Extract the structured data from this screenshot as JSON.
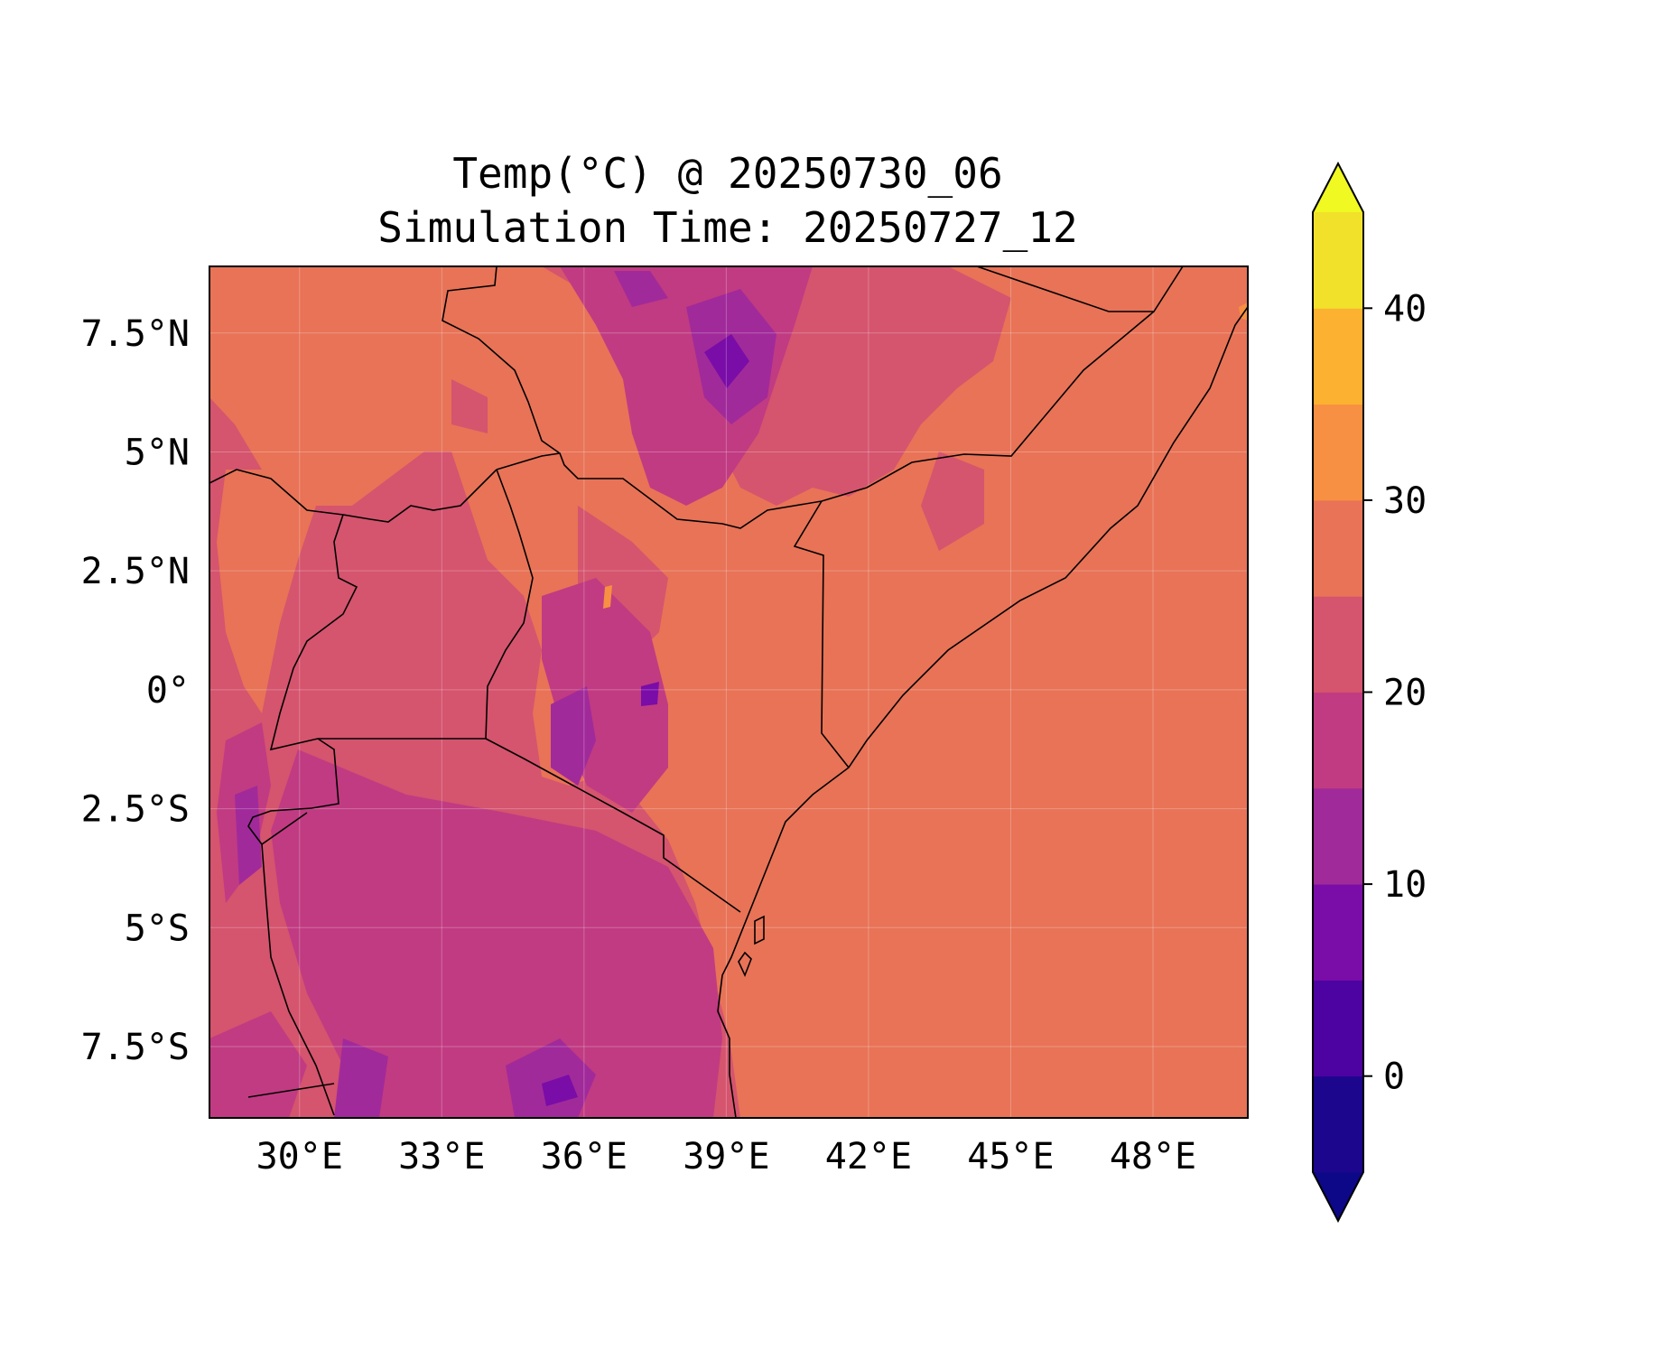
{
  "figure": {
    "title_line1": "Temp(°C) @ 20250730_06",
    "title_line2": "Simulation Time: 20250727_12"
  },
  "map": {
    "projection": "PlateCarree",
    "lon_range": [
      28.1,
      50.0
    ],
    "lat_range": [
      -9.0,
      8.9
    ],
    "gridlines": true,
    "background_color": "#e87357",
    "x_ticks": [
      {
        "value": 30,
        "label": "30°E"
      },
      {
        "value": 33,
        "label": "33°E"
      },
      {
        "value": 36,
        "label": "36°E"
      },
      {
        "value": 39,
        "label": "39°E"
      },
      {
        "value": 42,
        "label": "42°E"
      },
      {
        "value": 45,
        "label": "45°E"
      },
      {
        "value": 48,
        "label": "48°E"
      }
    ],
    "y_ticks": [
      {
        "value": 7.5,
        "label": "7.5°N"
      },
      {
        "value": 5,
        "label": "5°N"
      },
      {
        "value": 2.5,
        "label": "2.5°N"
      },
      {
        "value": 0,
        "label": "0°"
      },
      {
        "value": -2.5,
        "label": "2.5°S"
      },
      {
        "value": -5,
        "label": "5°S"
      },
      {
        "value": -7.5,
        "label": "7.5°S"
      }
    ]
  },
  "chart_data": {
    "type": "heatmap",
    "variable": "Temp(°C)",
    "colormap": "plasma",
    "levels": [
      -5,
      0,
      5,
      10,
      15,
      20,
      25,
      30,
      35,
      40,
      45
    ],
    "extend": "both",
    "level_colors": [
      "#1b068d",
      "#4d02a2",
      "#7a0ca8",
      "#a12a9a",
      "#c13b82",
      "#d5546e",
      "#e87357",
      "#f79042",
      "#fcb130",
      "#f1e12a"
    ],
    "under_color": "#0d0887",
    "over_color": "#f0f921",
    "colorbar_ticks": [
      {
        "value": 0,
        "label": "0"
      },
      {
        "value": 10,
        "label": "10"
      },
      {
        "value": 20,
        "label": "20"
      },
      {
        "value": 30,
        "label": "30"
      },
      {
        "value": 40,
        "label": "40"
      }
    ]
  }
}
